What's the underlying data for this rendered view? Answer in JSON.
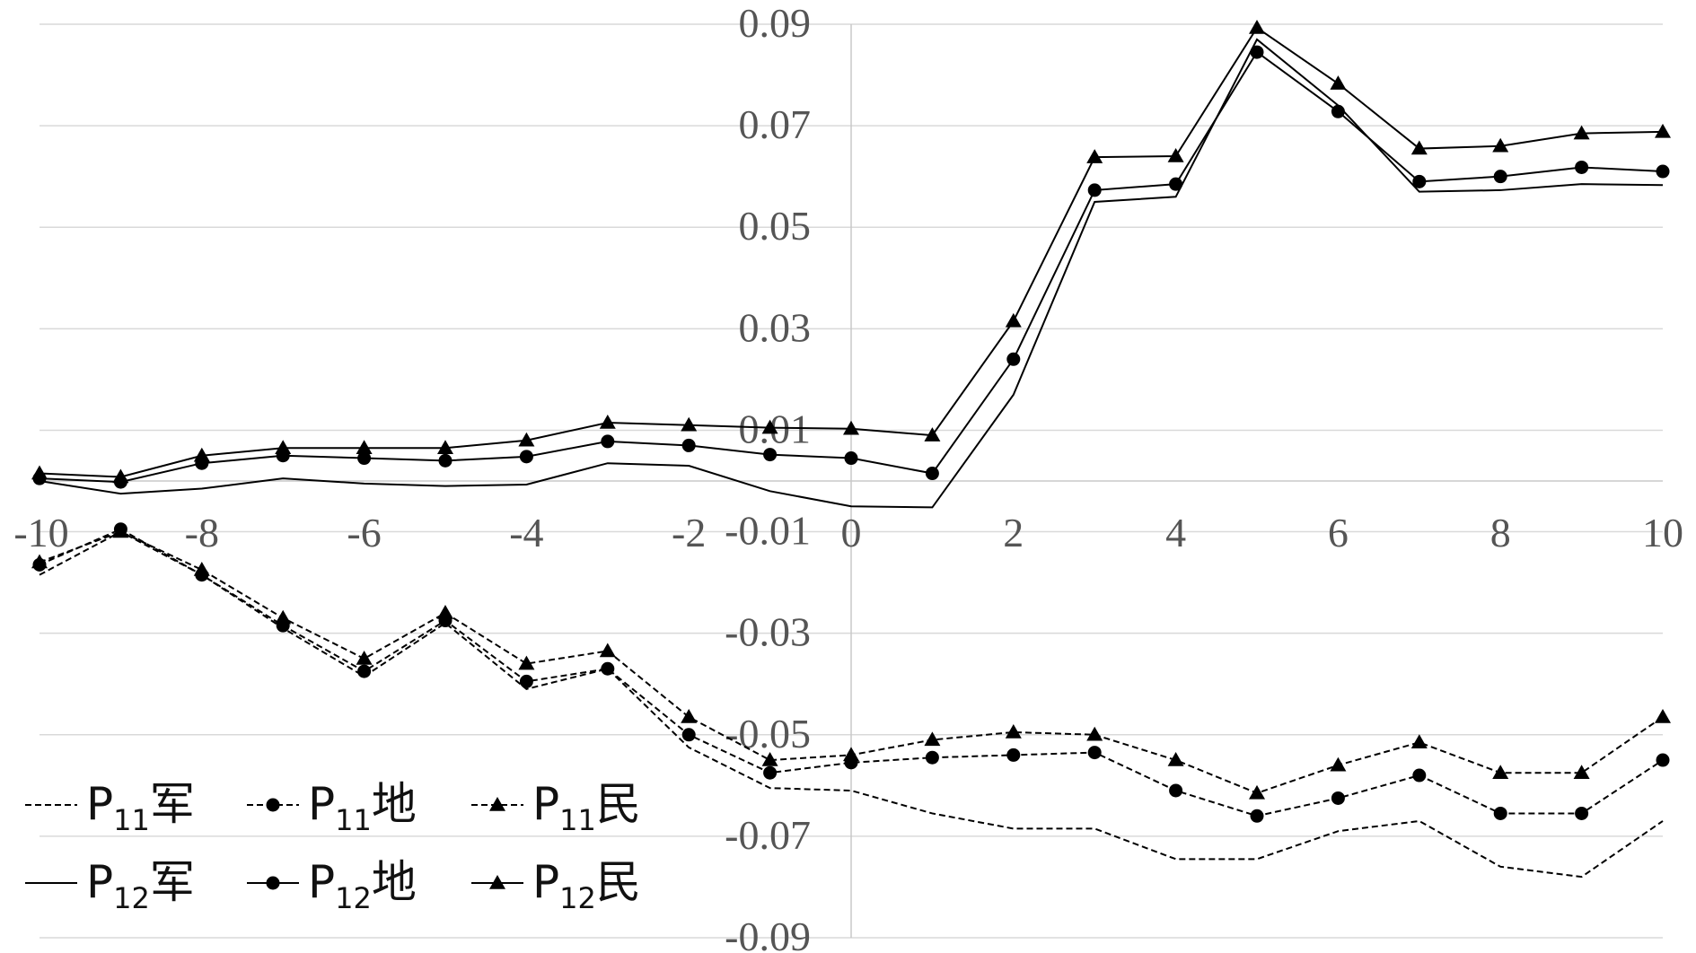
{
  "chart_data": {
    "type": "line",
    "x": [
      -10,
      -9,
      -8,
      -7,
      -6,
      -5,
      -4,
      -3,
      -2,
      -1,
      0,
      1,
      2,
      3,
      4,
      5,
      6,
      7,
      8,
      9,
      10
    ],
    "xlim": [
      -10,
      10
    ],
    "ylim": [
      -0.09,
      0.09
    ],
    "x_ticks": [
      "-10",
      "-8",
      "-6",
      "-4",
      "-2",
      "0",
      "2",
      "4",
      "6",
      "8",
      "10"
    ],
    "y_ticks": [
      "0.09",
      "0.07",
      "0.05",
      "0.03",
      "0.01",
      "-0.01",
      "-0.03",
      "-0.05",
      "-0.07",
      "-0.09"
    ],
    "grid": true,
    "legend_position": "bottom-left",
    "series": [
      {
        "name": "P11军",
        "name_base": "P",
        "name_sub": "11",
        "name_tail": "军",
        "line": "dashed",
        "marker": "none",
        "values": [
          -0.0185,
          -0.01,
          -0.0185,
          -0.029,
          -0.0385,
          -0.028,
          -0.041,
          -0.037,
          -0.0525,
          -0.0605,
          -0.061,
          -0.0655,
          -0.0685,
          -0.0685,
          -0.0745,
          -0.0745,
          -0.069,
          -0.067,
          -0.076,
          -0.078,
          -0.067
        ]
      },
      {
        "name": "P11地",
        "name_base": "P",
        "name_sub": "11",
        "name_tail": "地",
        "line": "dashed",
        "marker": "circle",
        "values": [
          -0.0165,
          -0.0095,
          -0.0185,
          -0.0285,
          -0.0375,
          -0.0275,
          -0.0395,
          -0.037,
          -0.05,
          -0.0575,
          -0.0555,
          -0.0545,
          -0.054,
          -0.0535,
          -0.061,
          -0.066,
          -0.0625,
          -0.058,
          -0.0655,
          -0.0655,
          -0.055
        ]
      },
      {
        "name": "P11民",
        "name_base": "P",
        "name_sub": "11",
        "name_tail": "民",
        "line": "dashed",
        "marker": "triangle",
        "values": [
          -0.016,
          -0.01,
          -0.0175,
          -0.027,
          -0.035,
          -0.026,
          -0.036,
          -0.0335,
          -0.0465,
          -0.055,
          -0.054,
          -0.051,
          -0.0495,
          -0.05,
          -0.055,
          -0.0615,
          -0.056,
          -0.0515,
          -0.0575,
          -0.0575,
          -0.0465
        ]
      },
      {
        "name": "P12军",
        "name_base": "P",
        "name_sub": "12",
        "name_tail": "军",
        "line": "solid",
        "marker": "none",
        "values": [
          0.0,
          -0.0025,
          -0.0015,
          0.0005,
          -0.0005,
          -0.001,
          -0.0007,
          0.0035,
          0.003,
          -0.002,
          -0.005,
          -0.0052,
          0.017,
          0.055,
          0.056,
          0.087,
          0.074,
          0.057,
          0.0573,
          0.0585,
          0.0583
        ]
      },
      {
        "name": "P12地",
        "name_base": "P",
        "name_sub": "12",
        "name_tail": "地",
        "line": "solid",
        "marker": "circle",
        "values": [
          0.0005,
          -0.0002,
          0.0035,
          0.005,
          0.0045,
          0.004,
          0.0048,
          0.0078,
          0.007,
          0.0052,
          0.0045,
          0.0015,
          0.024,
          0.0573,
          0.0585,
          0.0845,
          0.0728,
          0.059,
          0.06,
          0.0618,
          0.061
        ]
      },
      {
        "name": "P12民",
        "name_base": "P",
        "name_sub": "12",
        "name_tail": "民",
        "line": "solid",
        "marker": "triangle",
        "values": [
          0.0015,
          0.0008,
          0.005,
          0.0065,
          0.0065,
          0.0065,
          0.008,
          0.0115,
          0.011,
          0.0105,
          0.0103,
          0.009,
          0.0315,
          0.0638,
          0.064,
          0.0893,
          0.0783,
          0.0655,
          0.066,
          0.0685,
          0.0688
        ]
      }
    ]
  }
}
